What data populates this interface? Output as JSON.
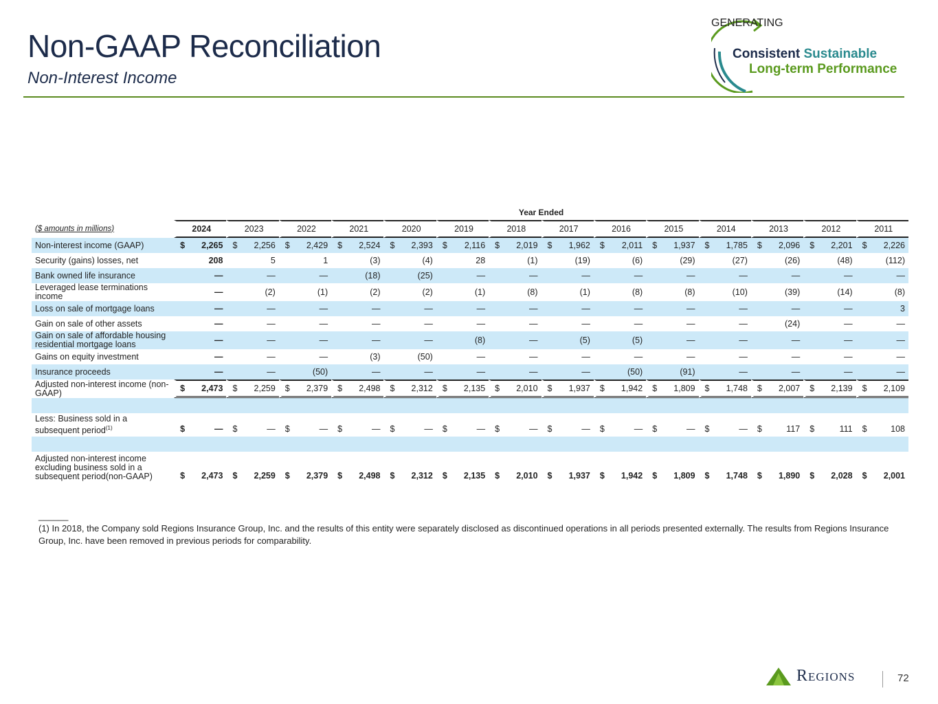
{
  "header": {
    "title": "Non-GAAP Reconciliation",
    "subtitle": "Non-Interest Income"
  },
  "logo": {
    "generating": "GENERATING",
    "consistent": "Consistent",
    "sustainable": "Sustainable",
    "longterm": "Long-term Performance"
  },
  "table": {
    "group_header": "Year Ended",
    "units_label": "($ amounts in millions)",
    "years": [
      "2024",
      "2023",
      "2022",
      "2021",
      "2020",
      "2019",
      "2018",
      "2017",
      "2016",
      "2015",
      "2014",
      "2013",
      "2012",
      "2011"
    ],
    "rows": [
      {
        "label": "Non-interest income (GAAP)",
        "dollar": true,
        "shade": true,
        "values": [
          "2,265",
          "2,256",
          "2,429",
          "2,524",
          "2,393",
          "2,116",
          "2,019",
          "1,962",
          "2,011",
          "1,937",
          "1,785",
          "2,096",
          "2,201",
          "2,226"
        ]
      },
      {
        "label": "Security (gains) losses, net",
        "values": [
          "208",
          "5",
          "1",
          "(3)",
          "(4)",
          "28",
          "(1)",
          "(19)",
          "(6)",
          "(29)",
          "(27)",
          "(26)",
          "(48)",
          "(112)"
        ]
      },
      {
        "label": "Bank owned life insurance",
        "shade": true,
        "values": [
          "—",
          "—",
          "—",
          "(18)",
          "(25)",
          "—",
          "—",
          "—",
          "—",
          "—",
          "—",
          "—",
          "—",
          "—"
        ]
      },
      {
        "label": "Leveraged lease terminations income",
        "values": [
          "—",
          "(2)",
          "(1)",
          "(2)",
          "(2)",
          "(1)",
          "(8)",
          "(1)",
          "(8)",
          "(8)",
          "(10)",
          "(39)",
          "(14)",
          "(8)"
        ]
      },
      {
        "label": "Loss on sale of mortgage loans",
        "shade": true,
        "values": [
          "—",
          "—",
          "—",
          "—",
          "—",
          "—",
          "—",
          "—",
          "—",
          "—",
          "—",
          "—",
          "—",
          "3"
        ]
      },
      {
        "label": "Gain on sale of other assets",
        "values": [
          "—",
          "—",
          "—",
          "—",
          "—",
          "—",
          "—",
          "—",
          "—",
          "—",
          "—",
          "(24)",
          "—",
          "—"
        ]
      },
      {
        "label": "Gain on sale of affordable housing residential mortgage loans",
        "shade": true,
        "values": [
          "—",
          "—",
          "—",
          "—",
          "—",
          "(8)",
          "—",
          "(5)",
          "(5)",
          "—",
          "—",
          "—",
          "—",
          "—"
        ]
      },
      {
        "label": "Gains on equity investment",
        "values": [
          "—",
          "—",
          "—",
          "(3)",
          "(50)",
          "—",
          "—",
          "—",
          "—",
          "—",
          "—",
          "—",
          "—",
          "—"
        ]
      },
      {
        "label": "Insurance proceeds",
        "shade": true,
        "values": [
          "—",
          "—",
          "(50)",
          "—",
          "—",
          "—",
          "—",
          "—",
          "(50)",
          "(91)",
          "—",
          "—",
          "—",
          "—"
        ]
      },
      {
        "label": "Adjusted non-interest income (non-GAAP)",
        "dollar": true,
        "total": true,
        "values": [
          "2,473",
          "2,259",
          "2,379",
          "2,498",
          "2,312",
          "2,135",
          "2,010",
          "1,937",
          "1,942",
          "1,809",
          "1,748",
          "2,007",
          "2,139",
          "2,109"
        ]
      },
      {
        "label": "",
        "shade": true,
        "blank": true,
        "values": []
      },
      {
        "label": "Less: Business sold in a subsequent period",
        "sup": "(1)",
        "dollar": true,
        "tall": true,
        "values": [
          "—",
          "—",
          "—",
          "—",
          "—",
          "—",
          "—",
          "—",
          "—",
          "—",
          "—",
          "117",
          "111",
          "108"
        ]
      },
      {
        "label": "",
        "shade": true,
        "blank": true,
        "values": []
      },
      {
        "label": "Adjusted non-interest income excluding business sold in a subsequent period(non-GAAP)",
        "dollar": true,
        "bold": true,
        "tall": true,
        "values": [
          "2,473",
          "2,259",
          "2,379",
          "2,498",
          "2,312",
          "2,135",
          "2,010",
          "1,937",
          "1,942",
          "1,809",
          "1,748",
          "1,890",
          "2,028",
          "2,001"
        ]
      }
    ]
  },
  "footnote": {
    "rule": "______",
    "text": "(1)  In 2018, the Company sold Regions Insurance Group, Inc. and the results of this entity were separately disclosed as discontinued operations in all periods presented externally. The results from Regions Insurance Group, Inc. have been removed in previous periods for comparability."
  },
  "footer": {
    "brand": "Regions",
    "page": "72"
  }
}
